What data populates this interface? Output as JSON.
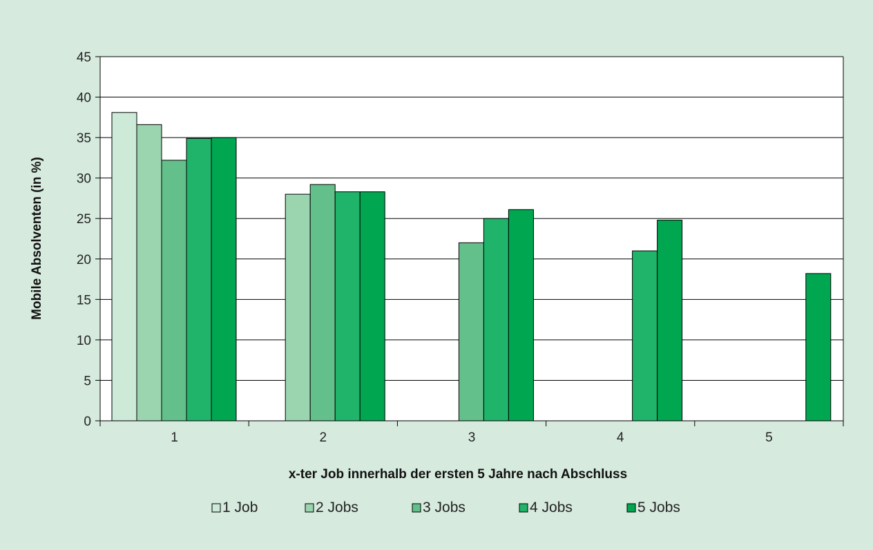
{
  "chart_data": {
    "type": "bar",
    "xlabel": "x-ter Job innerhalb der ersten 5 Jahre nach Abschluss",
    "ylabel": "Mobile Absolventen (in %)",
    "ylim": [
      0,
      45
    ],
    "yticks": [
      0,
      5,
      10,
      15,
      20,
      25,
      30,
      35,
      40,
      45
    ],
    "grid": true,
    "legend_position": "bottom",
    "categories": [
      "1",
      "2",
      "3",
      "4",
      "5"
    ],
    "series": [
      {
        "name": "1 Job",
        "color": "#cde9d8",
        "values": [
          38.1,
          null,
          null,
          null,
          null
        ]
      },
      {
        "name": "2 Jobs",
        "color": "#9ad5af",
        "values": [
          36.6,
          28.0,
          null,
          null,
          null
        ]
      },
      {
        "name": "3 Jobs",
        "color": "#63c08a",
        "values": [
          32.2,
          29.2,
          22.0,
          null,
          null
        ]
      },
      {
        "name": "4 Jobs",
        "color": "#20b36a",
        "values": [
          34.9,
          28.3,
          25.0,
          21.0,
          null
        ]
      },
      {
        "name": "5 Jobs",
        "color": "#00a650",
        "values": [
          35.0,
          28.3,
          26.1,
          24.8,
          18.2
        ]
      }
    ]
  }
}
